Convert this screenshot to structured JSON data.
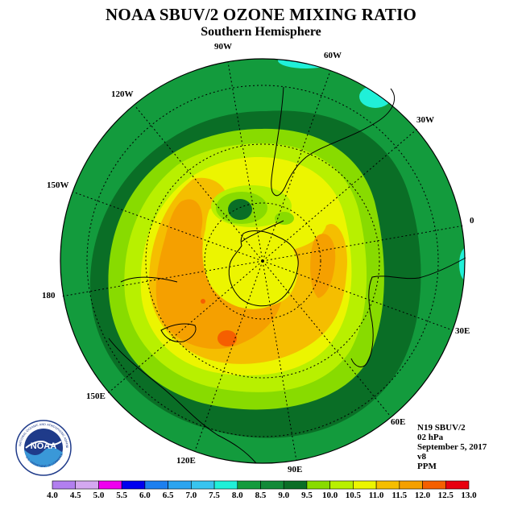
{
  "header": {
    "title": "NOAA SBUV/2 OZONE MIXING RATIO",
    "subtitle": "Southern Hemisphere"
  },
  "longitude_labels": [
    "90W",
    "60W",
    "30W",
    "0",
    "30E",
    "60E",
    "90E",
    "120E",
    "150E",
    "180",
    "150W",
    "120W"
  ],
  "info": {
    "instrument": "N19 SBUV/2",
    "level": "02 hPa",
    "date": "September 5, 2017",
    "version": "v8",
    "units": "PPM"
  },
  "colorbar": {
    "ticks": [
      "4.0",
      "4.5",
      "5.0",
      "5.5",
      "6.0",
      "6.5",
      "7.0",
      "7.5",
      "8.0",
      "8.5",
      "9.0",
      "9.5",
      "10.0",
      "10.5",
      "11.0",
      "11.5",
      "12.0",
      "12.5",
      "13.0"
    ],
    "colors": [
      "#b27fef",
      "#d4a8f0",
      "#ef00ef",
      "#0000ef",
      "#1c7fef",
      "#2ca4ef",
      "#38c4ef",
      "#20f0d8",
      "#139b3d",
      "#128a38",
      "#0a6e26",
      "#88db00",
      "#b8f000",
      "#ecf500",
      "#f5be00",
      "#f5a000",
      "#f55f00",
      "#e8000f",
      "#8f5a3a"
    ]
  },
  "logo": {
    "text": "NOAA",
    "ring_text": "NATIONAL OCEANIC AND ATMOSPHERIC ADMINISTRATION",
    "ring_text_bottom": "U.S. DEPARTMENT OF COMMERCE"
  }
}
